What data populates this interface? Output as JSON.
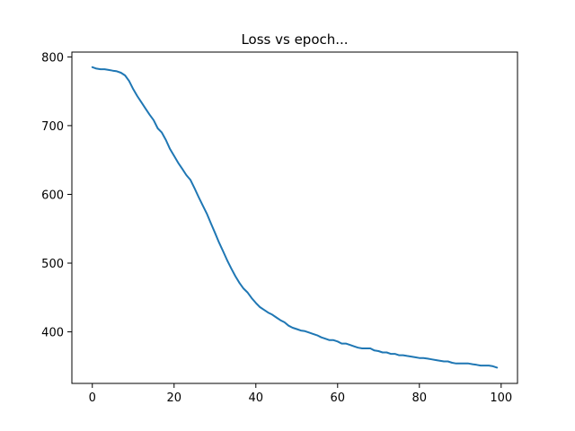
{
  "chart_data": {
    "type": "line",
    "title": "Loss vs epoch...",
    "xlabel": "",
    "ylabel": "",
    "xlim": [
      -5,
      104
    ],
    "ylim": [
      325,
      807
    ],
    "xticks": [
      0,
      20,
      40,
      60,
      80,
      100
    ],
    "yticks": [
      400,
      500,
      600,
      700,
      800
    ],
    "grid": false,
    "series": [
      {
        "color": "#1f77b4",
        "x": [
          0,
          1,
          2,
          3,
          4,
          5,
          6,
          7,
          8,
          9,
          10,
          11,
          12,
          13,
          14,
          15,
          16,
          17,
          18,
          19,
          20,
          21,
          22,
          23,
          24,
          25,
          26,
          27,
          28,
          29,
          30,
          31,
          32,
          33,
          34,
          35,
          36,
          37,
          38,
          39,
          40,
          41,
          42,
          43,
          44,
          45,
          46,
          47,
          48,
          49,
          50,
          51,
          52,
          53,
          54,
          55,
          56,
          57,
          58,
          59,
          60,
          61,
          62,
          63,
          64,
          65,
          66,
          67,
          68,
          69,
          70,
          71,
          72,
          73,
          74,
          75,
          76,
          77,
          78,
          79,
          80,
          81,
          82,
          83,
          84,
          85,
          86,
          87,
          88,
          89,
          90,
          91,
          92,
          93,
          94,
          95,
          96,
          97,
          98,
          99
        ],
        "y": [
          785,
          783,
          782,
          782,
          781,
          780,
          779,
          777,
          773,
          765,
          753,
          743,
          734,
          725,
          716,
          708,
          696,
          690,
          679,
          666,
          656,
          646,
          637,
          628,
          621,
          609,
          596,
          584,
          572,
          558,
          544,
          530,
          517,
          504,
          492,
          481,
          471,
          463,
          457,
          449,
          442,
          436,
          432,
          428,
          425,
          421,
          417,
          414,
          409,
          406,
          404,
          402,
          401,
          399,
          397,
          395,
          392,
          390,
          388,
          388,
          386,
          383,
          383,
          381,
          379,
          377,
          376,
          376,
          376,
          373,
          372,
          370,
          370,
          368,
          368,
          366,
          366,
          365,
          364,
          363,
          362,
          362,
          361,
          360,
          359,
          358,
          357,
          357,
          355,
          354,
          354,
          354,
          354,
          353,
          352,
          351,
          351,
          351,
          350,
          348
        ]
      }
    ]
  }
}
